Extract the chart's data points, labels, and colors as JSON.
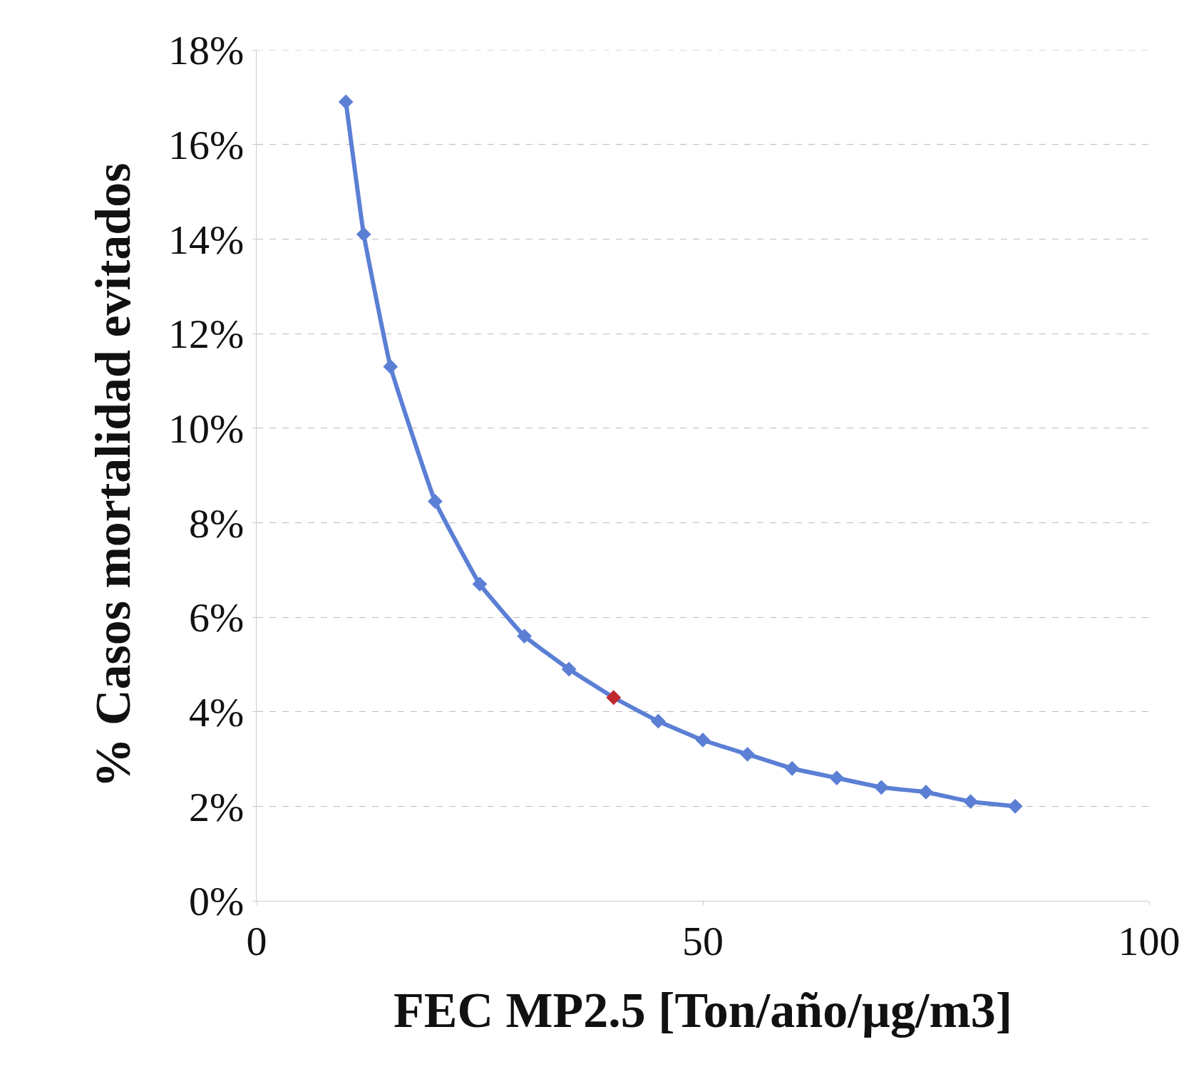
{
  "chart_data": {
    "type": "line",
    "xlabel": "FEC MP2.5 [Ton/año/µg/m3]",
    "ylabel": "% Casos mortalidad evitados",
    "x": [
      10,
      12,
      15,
      20,
      25,
      30,
      35,
      40,
      45,
      50,
      55,
      60,
      65,
      70,
      75,
      80,
      85
    ],
    "series": [
      {
        "color": "#5b7fd4",
        "values": [
          16.9,
          14.1,
          11.3,
          8.45,
          6.7,
          5.6,
          4.9,
          4.3,
          3.8,
          3.4,
          3.1,
          2.8,
          2.6,
          2.4,
          2.3,
          2.1,
          2.0
        ],
        "colors": [
          "#5b7fd4",
          "#5b7fd4",
          "#5b7fd4",
          "#5b7fd4",
          "#5b7fd4",
          "#5b7fd4",
          "#5b7fd4",
          "#c0282d",
          "#5b7fd4",
          "#5b7fd4",
          "#5b7fd4",
          "#5b7fd4",
          "#5b7fd4",
          "#5b7fd4",
          "#5b7fd4",
          "#5b7fd4",
          "#5b7fd4"
        ]
      }
    ],
    "xlim": [
      0,
      100
    ],
    "xticks": [
      0,
      50,
      100
    ],
    "ylim": [
      0,
      18
    ],
    "yticks": [
      {
        "value": 0,
        "label": "0%"
      },
      {
        "value": 2,
        "label": "2%"
      },
      {
        "value": 4,
        "label": "4%"
      },
      {
        "value": 6,
        "label": "6%"
      },
      {
        "value": 8,
        "label": "8%"
      },
      {
        "value": 10,
        "label": "10%"
      },
      {
        "value": 12,
        "label": "12%"
      },
      {
        "value": 14,
        "label": "14%"
      },
      {
        "value": 16,
        "label": "16%"
      },
      {
        "value": 18,
        "label": "18%"
      }
    ],
    "grid": "y",
    "marker": "diamond",
    "line_style": "solid"
  }
}
